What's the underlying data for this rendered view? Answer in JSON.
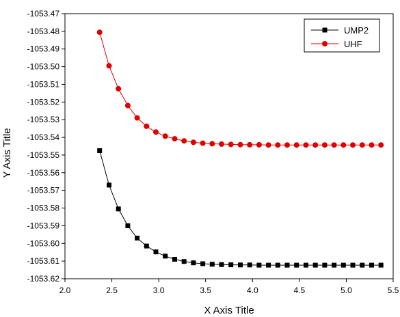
{
  "chart_data": {
    "type": "line",
    "xlabel": "X Axis Title",
    "ylabel": "Y Axis Title",
    "xlim": [
      2.0,
      5.5
    ],
    "ylim": [
      -1053.62,
      -1053.47
    ],
    "xticks": [
      2.0,
      2.5,
      3.0,
      3.5,
      4.0,
      4.5,
      5.0,
      5.5
    ],
    "yticks": [
      -1053.47,
      -1053.48,
      -1053.49,
      -1053.5,
      -1053.51,
      -1053.52,
      -1053.53,
      -1053.54,
      -1053.55,
      -1053.56,
      -1053.57,
      -1053.58,
      -1053.59,
      -1053.6,
      -1053.61,
      -1053.62
    ],
    "xtick_labels": [
      "2.0",
      "2.5",
      "3.0",
      "3.5",
      "4.0",
      "4.5",
      "5.0",
      "5.5"
    ],
    "ytick_labels": [
      "-1053.47",
      "-1053.48",
      "-1053.49",
      "-1053.50",
      "-1053.51",
      "-1053.52",
      "-1053.53",
      "-1053.54",
      "-1053.55",
      "-1053.56",
      "-1053.57",
      "-1053.58",
      "-1053.59",
      "-1053.60",
      "-1053.61",
      "-1053.62"
    ],
    "grid": false,
    "legend_position": "top-right",
    "x": [
      2.37,
      2.47,
      2.57,
      2.67,
      2.77,
      2.87,
      2.97,
      3.07,
      3.17,
      3.27,
      3.37,
      3.47,
      3.57,
      3.67,
      3.77,
      3.87,
      3.97,
      4.07,
      4.17,
      4.27,
      4.37,
      4.47,
      4.57,
      4.67,
      4.77,
      4.87,
      4.97,
      5.07,
      5.17,
      5.27,
      5.37
    ],
    "series": [
      {
        "name": "UMP2",
        "color": "#000000",
        "marker": "square",
        "values": [
          -1053.5475,
          -1053.567,
          -1053.5805,
          -1053.59,
          -1053.597,
          -1053.6015,
          -1053.6048,
          -1053.6072,
          -1053.609,
          -1053.6102,
          -1053.611,
          -1053.6115,
          -1053.6118,
          -1053.612,
          -1053.6121,
          -1053.6122,
          -1053.6122,
          -1053.6123,
          -1053.6123,
          -1053.6123,
          -1053.6123,
          -1053.6123,
          -1053.6123,
          -1053.6123,
          -1053.6123,
          -1053.6123,
          -1053.6123,
          -1053.6123,
          -1053.6123,
          -1053.6123,
          -1053.6123
        ]
      },
      {
        "name": "UHF",
        "color": "#e00000",
        "marker": "circle",
        "values": [
          -1053.4805,
          -1053.4995,
          -1053.5125,
          -1053.522,
          -1053.529,
          -1053.5337,
          -1053.537,
          -1053.5393,
          -1053.5408,
          -1053.542,
          -1053.5428,
          -1053.5433,
          -1053.5436,
          -1053.5438,
          -1053.544,
          -1053.5441,
          -1053.5442,
          -1053.5442,
          -1053.5443,
          -1053.5443,
          -1053.5443,
          -1053.5443,
          -1053.5443,
          -1053.5443,
          -1053.5443,
          -1053.5443,
          -1053.5443,
          -1053.5443,
          -1053.5443,
          -1053.5443,
          -1053.5443
        ]
      }
    ]
  }
}
